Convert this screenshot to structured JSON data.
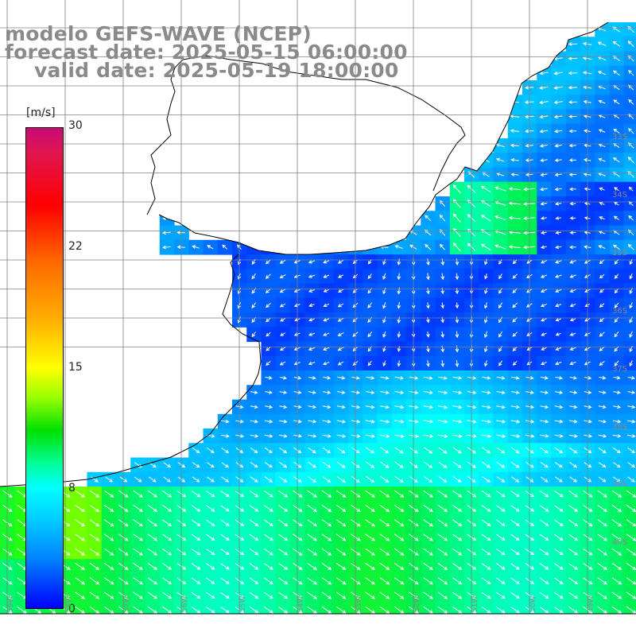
{
  "title": {
    "line1": "modelo GEFS-WAVE (NCEP)",
    "line2": "forecast date: 2025-05-15 06:00:00",
    "line3": "valid date: 2025-05-19 18:00:00"
  },
  "colorbar": {
    "unit": "[m/s]",
    "min": 0,
    "max": 30,
    "ticks": [
      "30",
      "22",
      "15",
      "8",
      "0"
    ],
    "tick_values": [
      30,
      22,
      15,
      8,
      0
    ],
    "colors": [
      "#0000ff",
      "#0080ff",
      "#00c8ff",
      "#00ffff",
      "#00ff9a",
      "#00e000",
      "#9cff00",
      "#ffff00",
      "#ffae00",
      "#ff6a00",
      "#ff0000",
      "#e0164f",
      "#c80a78"
    ]
  },
  "map": {
    "lat_labels": [
      "33S",
      "34S",
      "35S",
      "36S",
      "37S",
      "38S",
      "39S",
      "40S"
    ],
    "lon_labels": [
      "59W",
      "58W",
      "57W",
      "56W",
      "55W",
      "54W",
      "53W",
      "52W",
      "51W",
      "50W",
      "49W"
    ],
    "grid_color": "#808080",
    "land_color": "#ffffff",
    "coast_color": "#000000"
  }
}
